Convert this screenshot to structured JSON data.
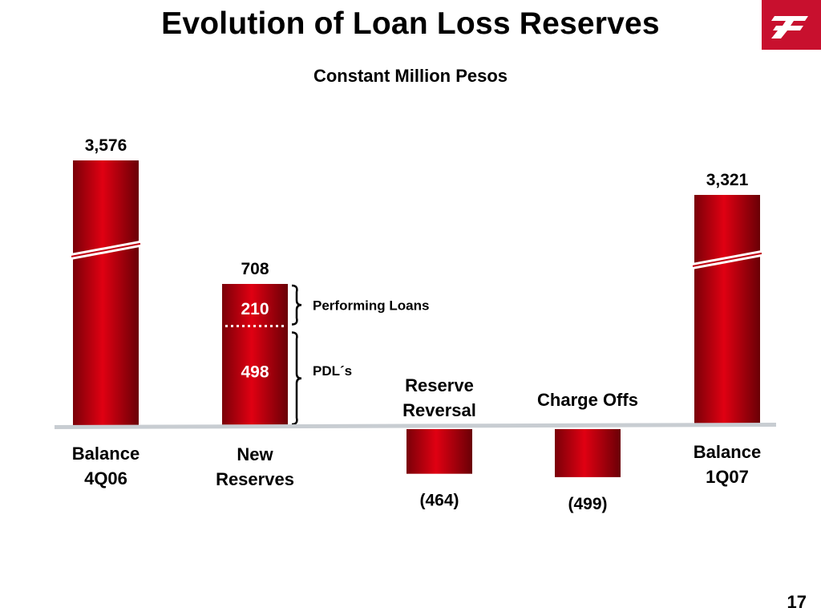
{
  "slide": {
    "title": "Evolution of Loan Loss Reserves",
    "subtitle": "Constant Million Pesos",
    "page_number": "17"
  },
  "colors": {
    "bar_dark": "#7a0008",
    "bar_mid": "#e00012",
    "baseline": "#c8cdd2",
    "logo": "#c8102e"
  },
  "logo": {
    "icon": "bank-logo-icon"
  },
  "chart_data": {
    "type": "waterfall",
    "categories": [
      [
        "Balance",
        "4Q06"
      ],
      [
        "New",
        "Reserves"
      ],
      [
        "Reserve",
        "Reversal"
      ],
      [
        "Charge Offs"
      ],
      [
        "Balance",
        "1Q07"
      ]
    ],
    "values": [
      3576,
      708,
      -464,
      -499,
      3321
    ],
    "value_labels": [
      "3,576",
      "708",
      "(464)",
      "(499)",
      "3,321"
    ],
    "breaks": [
      true,
      false,
      false,
      false,
      true
    ],
    "new_reserves_breakdown": [
      {
        "value": 210,
        "label": "210",
        "annotation": "Performing Loans"
      },
      {
        "value": 498,
        "label": "498",
        "annotation": "PDL´s"
      }
    ]
  }
}
